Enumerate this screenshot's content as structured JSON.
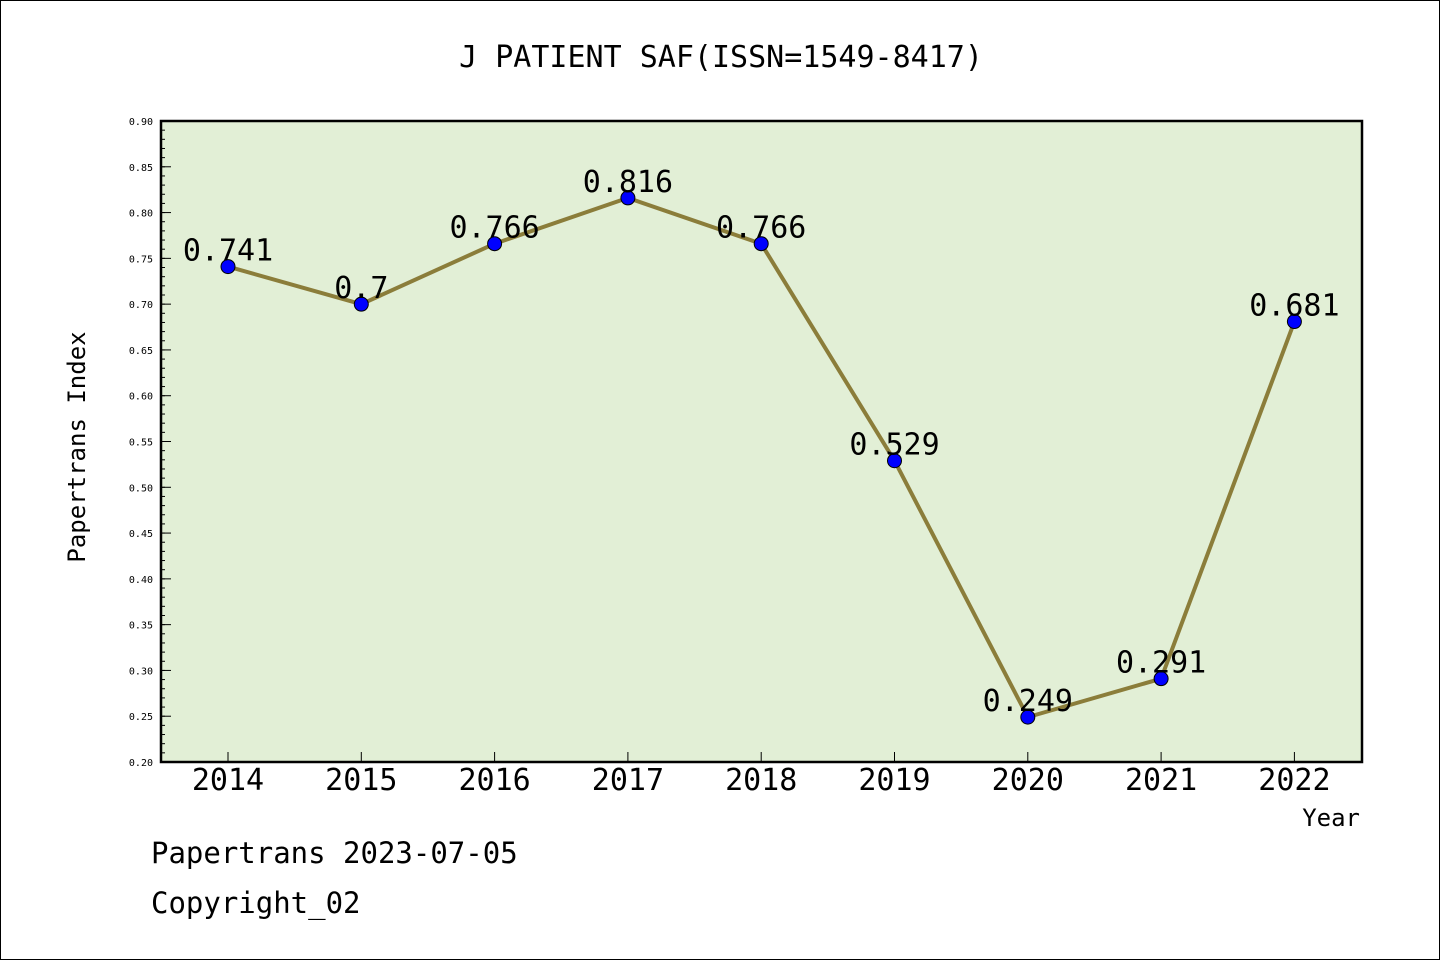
{
  "chart_data": {
    "type": "line",
    "title": "J PATIENT SAF(ISSN=1549-8417)",
    "xlabel": "Year",
    "ylabel": "Papertrans Index",
    "categories": [
      "2014",
      "2015",
      "2016",
      "2017",
      "2018",
      "2019",
      "2020",
      "2021",
      "2022"
    ],
    "values": [
      0.741,
      0.7,
      0.766,
      0.816,
      0.766,
      0.529,
      0.249,
      0.291,
      0.681
    ],
    "data_labels": [
      "0.741",
      "0.7",
      "0.766",
      "0.816",
      "0.766",
      "0.529",
      "0.249",
      "0.291",
      "0.681"
    ],
    "ylim": [
      0.2,
      0.9
    ],
    "yticks": [
      "0.20",
      "0.25",
      "0.30",
      "0.35",
      "0.40",
      "0.45",
      "0.50",
      "0.55",
      "0.60",
      "0.65",
      "0.70",
      "0.75",
      "0.80",
      "0.85",
      "0.90"
    ],
    "grid": false,
    "legend": "none",
    "colors": {
      "plot_background": "#e2efd6",
      "line": "#8b7d3a",
      "marker": "#0000ff"
    }
  },
  "footer": {
    "line1": "Papertrans 2023-07-05",
    "line2": "Copyright_02"
  }
}
